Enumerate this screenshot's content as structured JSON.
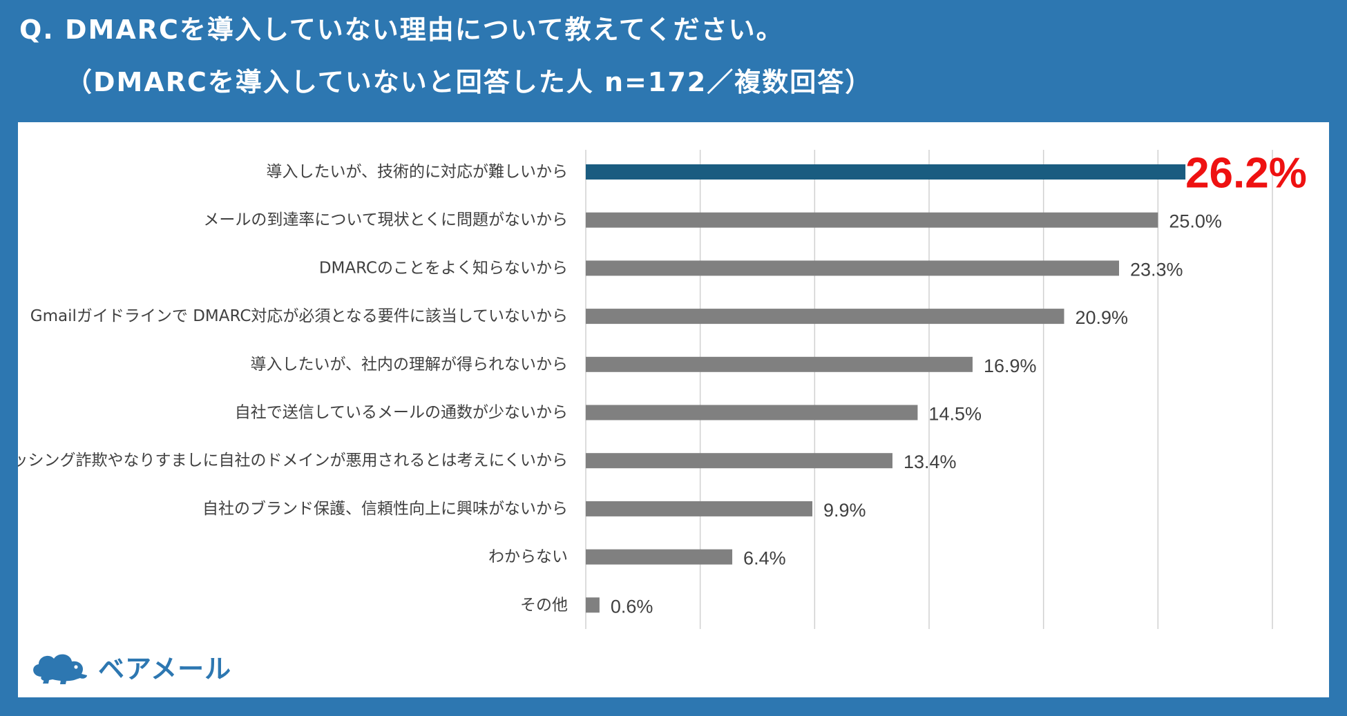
{
  "header": {
    "title_line1": "Q. DMARCを導入していない理由について教えてください。",
    "title_line2": "（DMARCを導入していないと回答した人 n=172／複数回答）"
  },
  "chart_data": {
    "type": "bar",
    "orientation": "horizontal",
    "title": "Q. DMARCを導入していない理由について教えてください。",
    "subtitle": "（DMARCを導入していないと回答した人 n=172／複数回答）",
    "categories": [
      "導入したいが、技術的に対応が難しいから",
      "メールの到達率について現状とくに問題がないから",
      "DMARCのことをよく知らないから",
      "Gmailガイドラインで DMARC対応が必須となる要件に該当していないから",
      "導入したいが、社内の理解が得られないから",
      "自社で送信しているメールの通数が少ないから",
      "フィッシング詐欺やなりすましに自社のドメインが悪用されるとは考えにくいから",
      "自社のブランド保護、信頼性向上に興味がないから",
      "わからない",
      "その他"
    ],
    "values": [
      26.2,
      25.0,
      23.3,
      20.9,
      16.9,
      14.5,
      13.4,
      9.9,
      6.4,
      0.6
    ],
    "value_labels": [
      "26.2%",
      "25.0%",
      "23.3%",
      "20.9%",
      "16.9%",
      "14.5%",
      "13.4%",
      "9.9%",
      "6.4%",
      "0.6%"
    ],
    "xlim": [
      0,
      30
    ],
    "grid_step": 5,
    "grid": true,
    "xlabel": "",
    "ylabel": "",
    "highlight_index": 0,
    "colors": {
      "bar_default": "#808080",
      "bar_highlight": "#1a5c80",
      "highlight_label": "#ee1111",
      "label_text": "#404040",
      "grid": "#d0d0d0"
    }
  },
  "logo": {
    "text": "ベアメール",
    "icon": "bear-cloud-icon",
    "color": "#2d77b1"
  }
}
